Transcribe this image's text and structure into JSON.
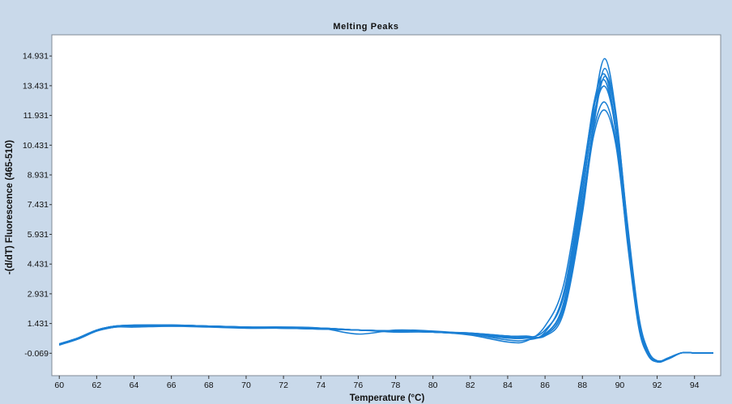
{
  "chart_data": {
    "type": "line",
    "title": "Melting Peaks",
    "xlabel": "Temperature (°C)",
    "ylabel": "-(d/dT) Fluorescence (465-510)",
    "xlim": [
      59.6,
      95.4
    ],
    "ylim": [
      -1.2,
      16.0
    ],
    "x_ticks": [
      60,
      62,
      64,
      66,
      68,
      70,
      72,
      74,
      76,
      78,
      80,
      82,
      84,
      86,
      88,
      90,
      92,
      94
    ],
    "y_ticks": [
      "-0.069",
      "1.431",
      "2.931",
      "4.431",
      "5.931",
      "7.431",
      "8.931",
      "10.431",
      "11.931",
      "13.431",
      "14.931"
    ],
    "grid": false,
    "legend": "none",
    "line_color": "#1a7fd4",
    "series": [
      {
        "x": [
          60,
          61,
          62,
          63,
          64,
          66,
          68,
          70,
          72,
          74,
          76,
          78,
          80,
          82,
          84,
          85,
          86,
          87,
          88,
          88.6,
          89.2,
          89.8,
          90.4,
          91,
          91.5,
          92,
          92.6,
          93.3,
          94,
          95
        ],
        "y": [
          0.4,
          0.7,
          1.1,
          1.3,
          1.3,
          1.35,
          1.3,
          1.25,
          1.2,
          1.2,
          1.1,
          1.05,
          1.0,
          0.9,
          0.8,
          0.75,
          0.9,
          2.5,
          8.0,
          12.2,
          14.8,
          12.0,
          6.5,
          1.8,
          0.1,
          -0.5,
          -0.35,
          -0.05,
          -0.05,
          -0.05
        ]
      },
      {
        "x": [
          60,
          61,
          62,
          63,
          64,
          66,
          68,
          70,
          72,
          74,
          76,
          78,
          80,
          82,
          84,
          85,
          86,
          87,
          88,
          88.6,
          89.2,
          89.8,
          90.4,
          91,
          91.5,
          92,
          92.6,
          93.3,
          94,
          95
        ],
        "y": [
          0.35,
          0.65,
          1.05,
          1.25,
          1.25,
          1.3,
          1.3,
          1.25,
          1.2,
          1.15,
          1.1,
          1.05,
          1.0,
          0.95,
          0.7,
          0.7,
          0.85,
          2.2,
          7.4,
          11.6,
          14.3,
          11.7,
          6.2,
          1.6,
          0.0,
          -0.45,
          -0.35,
          -0.05,
          -0.05,
          -0.05
        ]
      },
      {
        "x": [
          60,
          61,
          62,
          63,
          64,
          66,
          68,
          70,
          72,
          74,
          76,
          78,
          80,
          82,
          84,
          85,
          86,
          87,
          88,
          88.6,
          89.2,
          89.8,
          90.4,
          91,
          91.5,
          92,
          92.6,
          93.3,
          94,
          95
        ],
        "y": [
          0.4,
          0.7,
          1.1,
          1.3,
          1.35,
          1.35,
          1.3,
          1.25,
          1.25,
          1.2,
          0.9,
          1.1,
          1.05,
          0.9,
          0.6,
          0.6,
          1.0,
          3.0,
          8.6,
          12.5,
          14.0,
          11.2,
          5.8,
          1.4,
          -0.1,
          -0.5,
          -0.3,
          -0.05,
          -0.05,
          -0.05
        ]
      },
      {
        "x": [
          60,
          61,
          62,
          63,
          64,
          66,
          68,
          70,
          72,
          74,
          76,
          78,
          80,
          82,
          84,
          85,
          86,
          87,
          88,
          88.6,
          89.2,
          89.8,
          90.4,
          91,
          91.5,
          92,
          92.6,
          93.3,
          94,
          95
        ],
        "y": [
          0.35,
          0.65,
          1.05,
          1.25,
          1.3,
          1.3,
          1.25,
          1.2,
          1.2,
          1.15,
          1.1,
          1.0,
          1.0,
          0.85,
          0.5,
          0.55,
          1.3,
          3.4,
          8.9,
          12.3,
          13.7,
          11.0,
          5.6,
          1.3,
          -0.15,
          -0.5,
          -0.3,
          -0.05,
          -0.05,
          -0.05
        ]
      },
      {
        "x": [
          60,
          61,
          62,
          63,
          64,
          66,
          68,
          70,
          72,
          74,
          76,
          78,
          80,
          82,
          84,
          85,
          86,
          87,
          88,
          88.6,
          89.2,
          89.8,
          90.4,
          91,
          91.5,
          92,
          92.6,
          93.3,
          94,
          95
        ],
        "y": [
          0.4,
          0.7,
          1.1,
          1.3,
          1.3,
          1.3,
          1.3,
          1.25,
          1.2,
          1.2,
          1.1,
          1.05,
          1.0,
          0.95,
          0.8,
          0.8,
          0.8,
          2.0,
          7.0,
          11.4,
          13.9,
          11.8,
          6.6,
          1.9,
          0.1,
          -0.45,
          -0.35,
          -0.05,
          -0.05,
          -0.05
        ]
      },
      {
        "x": [
          60,
          61,
          62,
          63,
          64,
          66,
          68,
          70,
          72,
          74,
          76,
          78,
          80,
          82,
          84,
          85,
          86,
          87,
          88,
          88.6,
          89.2,
          89.8,
          90.4,
          91,
          91.5,
          92,
          92.6,
          93.3,
          94,
          95
        ],
        "y": [
          0.35,
          0.7,
          1.1,
          1.3,
          1.3,
          1.35,
          1.3,
          1.25,
          1.25,
          1.2,
          1.1,
          1.05,
          1.0,
          0.9,
          0.75,
          0.7,
          1.1,
          2.8,
          8.2,
          11.9,
          13.4,
          11.1,
          6.0,
          1.6,
          0.0,
          -0.5,
          -0.35,
          -0.05,
          -0.05,
          -0.05
        ]
      },
      {
        "x": [
          60,
          61,
          62,
          63,
          64,
          66,
          68,
          70,
          72,
          74,
          76,
          78,
          80,
          82,
          84,
          85,
          86,
          87,
          88,
          88.6,
          89.2,
          89.8,
          90.4,
          91,
          91.5,
          92,
          92.6,
          93.3,
          94,
          95
        ],
        "y": [
          0.4,
          0.65,
          1.05,
          1.25,
          1.3,
          1.3,
          1.3,
          1.2,
          1.2,
          1.15,
          1.1,
          1.05,
          1.0,
          0.9,
          0.7,
          0.7,
          0.9,
          2.4,
          7.6,
          11.2,
          12.6,
          10.6,
          5.9,
          1.7,
          0.05,
          -0.45,
          -0.35,
          -0.05,
          -0.05,
          -0.05
        ]
      },
      {
        "x": [
          60,
          61,
          62,
          63,
          64,
          66,
          68,
          70,
          72,
          74,
          76,
          78,
          80,
          82,
          84,
          85,
          86,
          87,
          88,
          88.6,
          89.2,
          89.8,
          90.4,
          91,
          91.5,
          92,
          92.6,
          93.3,
          94,
          95
        ],
        "y": [
          0.35,
          0.7,
          1.1,
          1.3,
          1.35,
          1.35,
          1.3,
          1.25,
          1.2,
          1.2,
          1.1,
          1.05,
          1.0,
          0.95,
          0.8,
          0.75,
          0.85,
          2.2,
          7.2,
          10.9,
          12.2,
          10.4,
          5.8,
          1.7,
          0.05,
          -0.45,
          -0.35,
          -0.05,
          -0.05,
          -0.05
        ]
      }
    ]
  }
}
